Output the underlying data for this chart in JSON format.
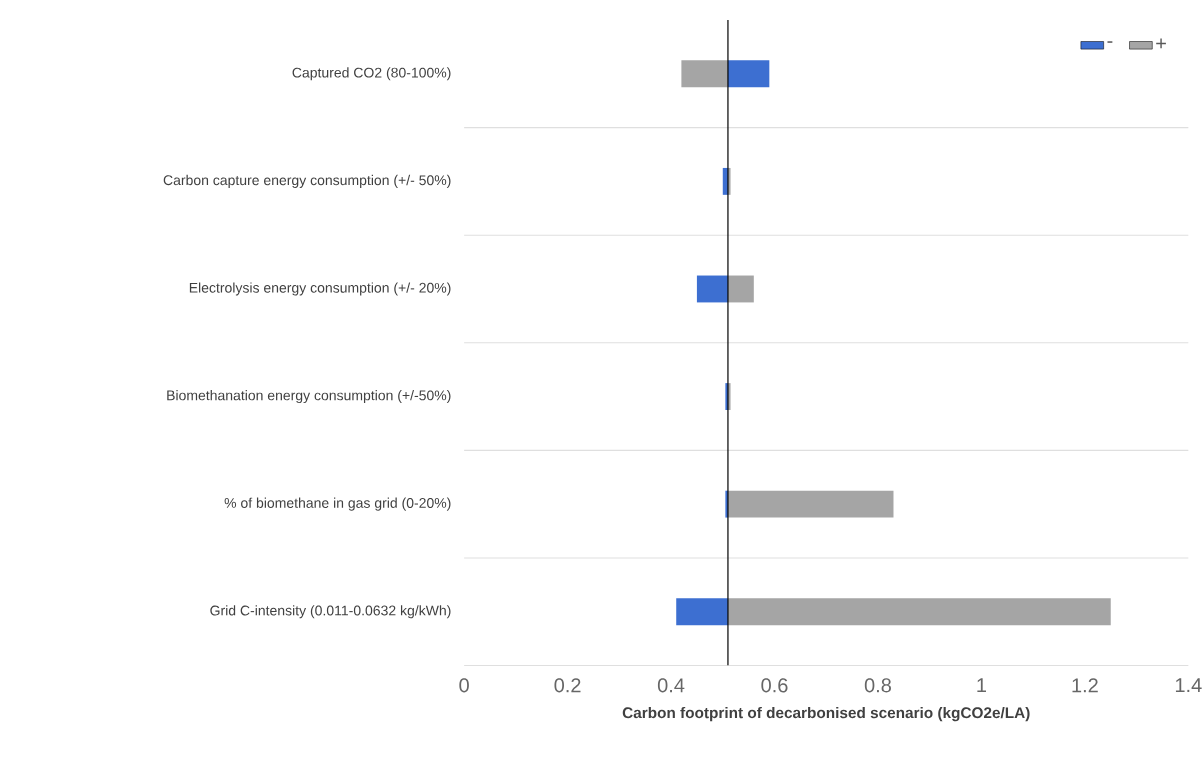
{
  "chart_data": {
    "type": "bar",
    "orientation": "horizontal",
    "categories": [
      "Captured CO2 (80-100%)",
      "Carbon capture energy consumption (+/- 50%)",
      "Electrolysis energy consumption (+/- 20%)",
      "Biomethanation energy consumption (+/-50%)",
      "% of biomethane in gas grid (0-20%)",
      "Grid C-intensity (0.011-0.0632 kg/kWh)"
    ],
    "series": [
      {
        "name": "-",
        "color": "#3d6fd1",
        "base": [
          0.51,
          0.51,
          0.51,
          0.51,
          0.51,
          0.51
        ],
        "values": [
          0.08,
          -0.01,
          -0.06,
          -0.005,
          -0.005,
          -0.1
        ]
      },
      {
        "name": "+",
        "color": "#a5a5a5",
        "base": [
          0.51,
          0.51,
          0.51,
          0.51,
          0.51,
          0.51
        ],
        "values": [
          -0.09,
          0.005,
          0.05,
          0.005,
          0.32,
          0.74
        ]
      }
    ],
    "xlabel": "Carbon footprint of decarbonised scenario (kgCO2e/LA)",
    "xlim": [
      0,
      1.4
    ],
    "xticks": [
      0,
      0.2,
      0.4,
      0.6,
      0.8,
      1,
      1.2,
      1.4
    ],
    "ref_lines": [
      {
        "axis": "x",
        "value": 0.51,
        "color": "#000000"
      }
    ],
    "grid": "y",
    "legend": "top right"
  }
}
